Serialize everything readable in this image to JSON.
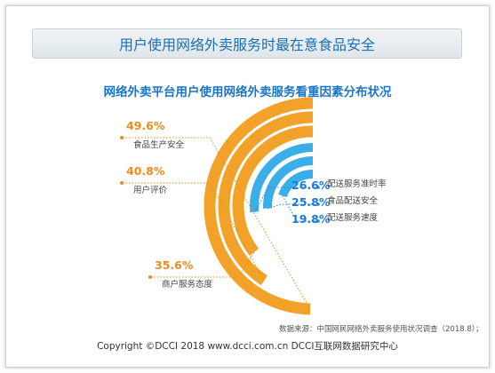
{
  "banner_title": "用户使用网络外卖服务时最在意食品安全",
  "chart_data": {
    "type": "radial-bar",
    "title": "网络外卖平台用户使用网络外卖服务看重因素分布状况",
    "unit": "%",
    "series": [
      {
        "label": "食品生产安全",
        "value": 49.6,
        "display": "49.6%",
        "color": "#f2a228"
      },
      {
        "label": "用户评价",
        "value": 40.8,
        "display": "40.8%",
        "color": "#f2a228"
      },
      {
        "label": "商户服务态度",
        "value": 35.6,
        "display": "35.6%",
        "color": "#f2a228"
      },
      {
        "label": "配送服务准时率",
        "value": 26.6,
        "display": "26.6%",
        "color": "#39aee8"
      },
      {
        "label": "食品配送安全",
        "value": 25.8,
        "display": "25.8%",
        "color": "#39aee8"
      },
      {
        "label": "配送服务速度",
        "value": 19.8,
        "display": "19.8%",
        "color": "#39aee8"
      }
    ]
  },
  "source": "数据来源：中国网民网络外卖服务使用状况调查（2018.8）；",
  "copyright": "Copyright ©DCCI 2018  www.dcci.com.cn  DCCI互联网数据研究中心"
}
